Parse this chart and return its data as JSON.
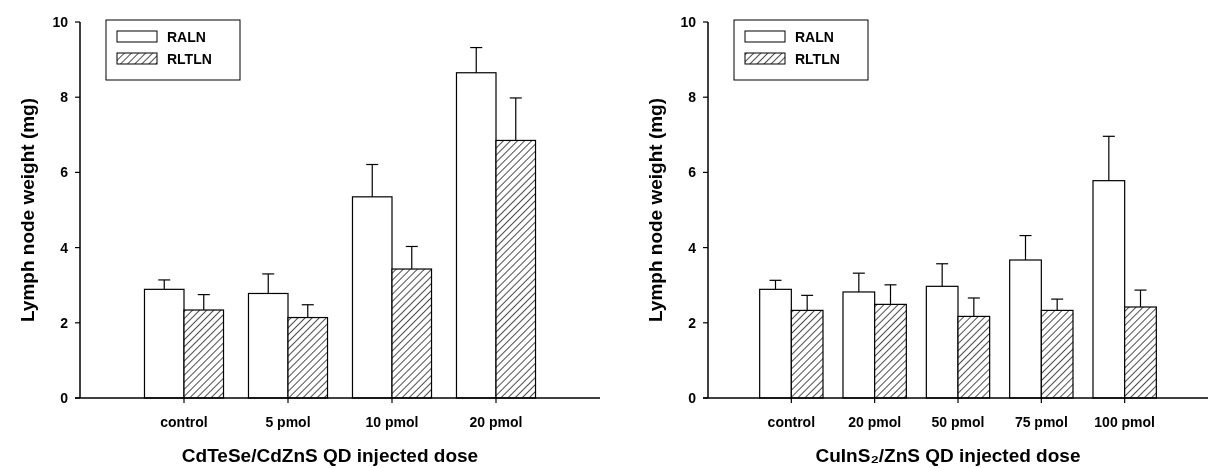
{
  "chart_data": [
    {
      "type": "bar",
      "xlabel": "CdTeSe/CdZnS QD injected dose",
      "ylabel": "Lymph node weight (mg)",
      "categories": [
        "control",
        "5 pmol",
        "10 pmol",
        "20 pmol"
      ],
      "ylim": [
        0,
        10
      ],
      "yticks": [
        0,
        2,
        4,
        6,
        8,
        10
      ],
      "legend": "top left",
      "series": [
        {
          "name": "RALN",
          "color": "#ffffff",
          "values": [
            2.89,
            2.78,
            5.35,
            8.65
          ],
          "errors": [
            0.25,
            0.52,
            0.86,
            0.67
          ]
        },
        {
          "name": "RLTLN",
          "color": "#000000",
          "values": [
            2.34,
            2.14,
            3.43,
            6.85
          ],
          "errors": [
            0.41,
            0.34,
            0.6,
            1.13
          ]
        }
      ]
    },
    {
      "type": "bar",
      "xlabel": "CuInS₂/ZnS QD injected dose",
      "ylabel": "Lymph node weight (mg)",
      "categories": [
        "control",
        "20 pmol",
        "50 pmol",
        "75 pmol",
        "100 pmol"
      ],
      "ylim": [
        0,
        10
      ],
      "yticks": [
        0,
        2,
        4,
        6,
        8,
        10
      ],
      "legend": "top left",
      "series": [
        {
          "name": "RALN",
          "color": "#ffffff",
          "values": [
            2.89,
            2.82,
            2.97,
            3.67,
            5.78
          ],
          "errors": [
            0.24,
            0.5,
            0.6,
            0.65,
            1.18
          ]
        },
        {
          "name": "RLTLN",
          "color": "#000000",
          "values": [
            2.33,
            2.49,
            2.17,
            2.33,
            2.42
          ],
          "errors": [
            0.4,
            0.52,
            0.49,
            0.3,
            0.45
          ]
        }
      ]
    }
  ]
}
